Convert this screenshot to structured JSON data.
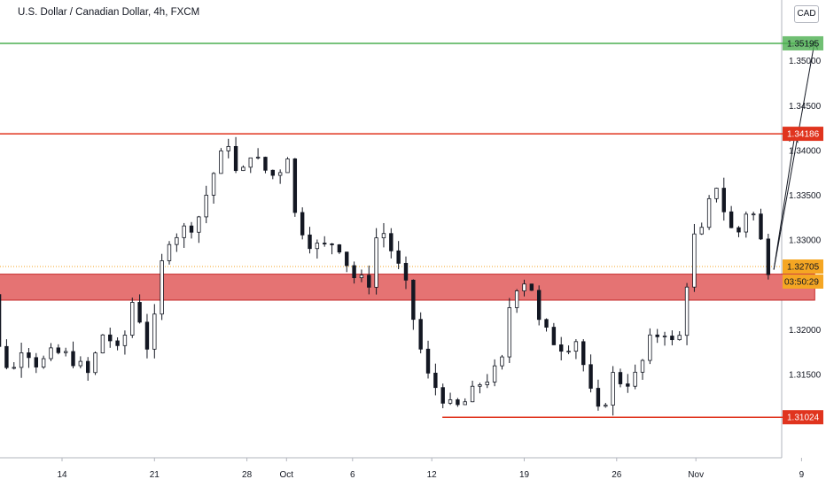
{
  "header": {
    "symbol_title": "U.S. Dollar / Canadian Dollar, 4h, FXCM",
    "currency_badge": "CAD"
  },
  "colors": {
    "bull": "#26a69a",
    "bear": "#ef5350",
    "candle": "#131722",
    "resistance": "#e0341e",
    "target": "#4caf50",
    "zone_fill": "#e57373",
    "zone_border": "#c62828",
    "current_price": "#f5a623",
    "axis_text": "#131722"
  },
  "chart_data": {
    "type": "candlestick",
    "title": "U.S. Dollar / Canadian Dollar, 4h, FXCM",
    "ylim": [
      1.307,
      1.3555
    ],
    "y_ticks": [
      {
        "value": 1.315,
        "label": "1.31500"
      },
      {
        "value": 1.32,
        "label": "1.32000"
      },
      {
        "value": 1.33,
        "label": "1.33000"
      },
      {
        "value": 1.335,
        "label": "1.33500"
      },
      {
        "value": 1.34,
        "label": "1.34000"
      },
      {
        "value": 1.345,
        "label": "1.34500"
      },
      {
        "value": 1.35,
        "label": "1.35000"
      }
    ],
    "x_ticks": [
      {
        "label": "14",
        "day": 14
      },
      {
        "label": "21",
        "day": 21
      },
      {
        "label": "28",
        "day": 28
      },
      {
        "label": "Oct",
        "day": 31
      },
      {
        "label": "6",
        "day": 36
      },
      {
        "label": "12",
        "day": 42
      },
      {
        "label": "19",
        "day": 49
      },
      {
        "label": "26",
        "day": 56
      },
      {
        "label": "Nov",
        "day": 62
      },
      {
        "label": "9",
        "day": 70
      }
    ],
    "x_axis_unit": "day (1 = Sep 1)",
    "price_path": [
      [
        7.0,
        1.316
      ],
      [
        7.8,
        1.326
      ],
      [
        8.6,
        1.325
      ],
      [
        9.2,
        1.318
      ],
      [
        10.2,
        1.315
      ],
      [
        11.0,
        1.3185
      ],
      [
        12.2,
        1.316
      ],
      [
        13.4,
        1.3175
      ],
      [
        14.6,
        1.317
      ],
      [
        16.0,
        1.315
      ],
      [
        17.2,
        1.32
      ],
      [
        18.4,
        1.317
      ],
      [
        19.6,
        1.325
      ],
      [
        20.2,
        1.317
      ],
      [
        21.0,
        1.321
      ],
      [
        21.8,
        1.33
      ],
      [
        23.0,
        1.331
      ],
      [
        24.2,
        1.332
      ],
      [
        25.6,
        1.338
      ],
      [
        26.6,
        1.341
      ],
      [
        27.4,
        1.336
      ],
      [
        28.2,
        1.34
      ],
      [
        29.2,
        1.338
      ],
      [
        30.2,
        1.337
      ],
      [
        31.2,
        1.34
      ],
      [
        31.6,
        1.333
      ],
      [
        32.6,
        1.33
      ],
      [
        33.6,
        1.329
      ],
      [
        34.8,
        1.33
      ],
      [
        36.0,
        1.326
      ],
      [
        37.2,
        1.325
      ],
      [
        38.0,
        1.332
      ],
      [
        39.2,
        1.328
      ],
      [
        40.0,
        1.325
      ],
      [
        40.8,
        1.32
      ],
      [
        41.6,
        1.315
      ],
      [
        42.6,
        1.313
      ],
      [
        43.6,
        1.311
      ],
      [
        44.6,
        1.312
      ],
      [
        45.6,
        1.314
      ],
      [
        46.6,
        1.315
      ],
      [
        47.6,
        1.317
      ],
      [
        48.0,
        1.325
      ],
      [
        48.6,
        1.325
      ],
      [
        49.4,
        1.326
      ],
      [
        50.0,
        1.321
      ],
      [
        51.0,
        1.319
      ],
      [
        52.0,
        1.318
      ],
      [
        53.0,
        1.319
      ],
      [
        54.0,
        1.313
      ],
      [
        54.8,
        1.31
      ],
      [
        55.6,
        1.315
      ],
      [
        56.6,
        1.314
      ],
      [
        57.6,
        1.315
      ],
      [
        58.6,
        1.319
      ],
      [
        59.6,
        1.32
      ],
      [
        60.4,
        1.318
      ],
      [
        61.0,
        1.32
      ],
      [
        61.6,
        1.33
      ],
      [
        62.6,
        1.331
      ],
      [
        63.4,
        1.337
      ],
      [
        64.2,
        1.333
      ],
      [
        65.0,
        1.33
      ],
      [
        66.0,
        1.334
      ],
      [
        66.6,
        1.332
      ],
      [
        67.2,
        1.328
      ],
      [
        67.6,
        1.3265
      ]
    ],
    "series": [
      {
        "name": "1.34186",
        "kind": "resistance-line",
        "value": 1.34186,
        "day_start": 7.7,
        "day_end": 71.0
      },
      {
        "name": "1.31024",
        "kind": "support-line",
        "value": 1.31024,
        "day_start": 42.8,
        "day_end": 71.0
      },
      {
        "name": "1.35195",
        "kind": "target-line",
        "value": 1.35195,
        "day_start": 7.3,
        "day_end": 71.0
      }
    ],
    "zone": {
      "low": 1.3233,
      "high": 1.3262,
      "day_start": 7.0,
      "day_end": 71.0
    },
    "current_price": {
      "value": 1.32705,
      "label": "1.32705",
      "countdown": "03:50:29"
    },
    "price_labels": [
      {
        "value": 1.35195,
        "label": "1.35195",
        "style": "target"
      },
      {
        "value": 1.34186,
        "label": "1.34186",
        "style": "resistance"
      },
      {
        "value": 1.31024,
        "label": "1.31024",
        "style": "resistance"
      }
    ],
    "projection_arrows": [
      {
        "from": [
          67.9,
          1.3267
        ],
        "to": [
          69.5,
          1.3418
        ]
      },
      {
        "from": [
          67.9,
          1.3267
        ],
        "to": [
          71.0,
          1.3522
        ]
      }
    ],
    "grid": false
  }
}
